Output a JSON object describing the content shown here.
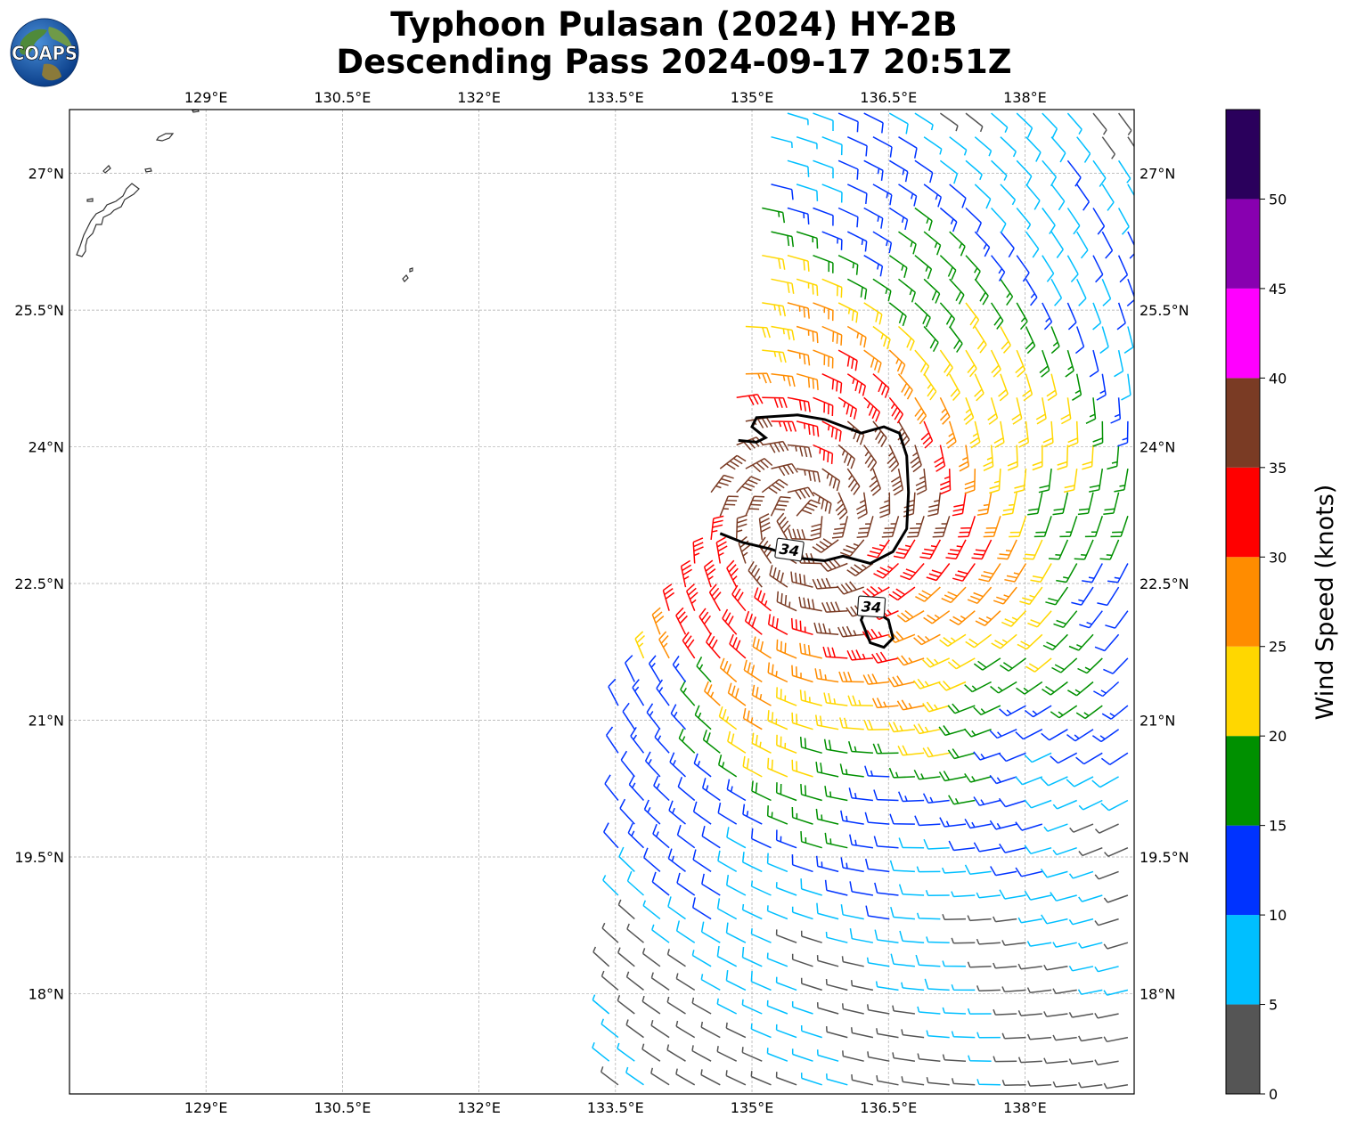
{
  "title": {
    "line1": "Typhoon Pulasan (2024) HY-2B",
    "line2": "Descending Pass 2024-09-17 20:51Z"
  },
  "logo": {
    "text": "COAPS",
    "icon": "globe-logo-icon"
  },
  "map": {
    "lon_range": [
      127.5,
      139.2
    ],
    "lat_range": [
      16.9,
      27.7
    ],
    "lon_ticks": [
      {
        "value": 129.0,
        "label": "129°E"
      },
      {
        "value": 130.5,
        "label": "130.5°E"
      },
      {
        "value": 132.0,
        "label": "132°E"
      },
      {
        "value": 133.5,
        "label": "133.5°E"
      },
      {
        "value": 135.0,
        "label": "135°E"
      },
      {
        "value": 136.5,
        "label": "136.5°E"
      },
      {
        "value": 138.0,
        "label": "138°E"
      }
    ],
    "lat_ticks": [
      {
        "value": 27.0,
        "label": "27°N"
      },
      {
        "value": 25.5,
        "label": "25.5°N"
      },
      {
        "value": 24.0,
        "label": "24°N"
      },
      {
        "value": 22.5,
        "label": "22.5°N"
      },
      {
        "value": 21.0,
        "label": "21°N"
      },
      {
        "value": 19.5,
        "label": "19.5°N"
      },
      {
        "value": 18.0,
        "label": "18°N"
      }
    ],
    "gridlines": true,
    "storm_center": {
      "lon": 135.6,
      "lat": 23.2
    },
    "contour_label": "34",
    "contour_34kt": [
      [
        134.65,
        23.05
      ],
      [
        134.9,
        22.95
      ],
      [
        135.2,
        22.88
      ],
      [
        135.5,
        22.78
      ],
      [
        135.8,
        22.75
      ],
      [
        136.0,
        22.8
      ],
      [
        136.3,
        22.72
      ],
      [
        136.55,
        22.85
      ],
      [
        136.7,
        23.1
      ],
      [
        136.72,
        23.5
      ],
      [
        136.7,
        23.9
      ],
      [
        136.62,
        24.15
      ],
      [
        136.45,
        24.22
      ],
      [
        136.2,
        24.15
      ],
      [
        135.8,
        24.3
      ],
      [
        135.5,
        24.35
      ],
      [
        135.05,
        24.32
      ],
      [
        135.0,
        24.22
      ],
      [
        135.15,
        24.1
      ],
      [
        135.05,
        24.05
      ],
      [
        134.85,
        24.07
      ]
    ],
    "contour_34kt_small": [
      [
        136.2,
        22.1
      ],
      [
        136.3,
        21.85
      ],
      [
        136.45,
        21.8
      ],
      [
        136.55,
        21.9
      ],
      [
        136.5,
        22.1
      ],
      [
        136.35,
        22.2
      ],
      [
        136.22,
        22.15
      ]
    ]
  },
  "colorbar": {
    "label": "Wind Speed (knots)",
    "bounds": [
      0,
      5,
      10,
      15,
      20,
      25,
      30,
      35,
      40,
      45,
      50,
      55
    ],
    "tick_labels": [
      "0",
      "5",
      "10",
      "15",
      "20",
      "25",
      "30",
      "35",
      "40",
      "45",
      "50"
    ],
    "colors": [
      "#555555",
      "#00bfff",
      "#0033ff",
      "#009000",
      "#ffd700",
      "#ff8c00",
      "#ff0000",
      "#7a3b24",
      "#ff00ff",
      "#8800b0",
      "#2a005c"
    ]
  },
  "swath": {
    "polygon": [
      [
        135.25,
        27.7
      ],
      [
        139.2,
        27.7
      ],
      [
        139.2,
        16.9
      ],
      [
        133.4,
        16.9
      ],
      [
        133.3,
        17.3
      ],
      [
        133.5,
        19.3
      ],
      [
        133.45,
        20.6
      ],
      [
        133.6,
        21.8
      ],
      [
        134.3,
        22.5
      ],
      [
        134.55,
        23.5
      ],
      [
        134.9,
        25.3
      ],
      [
        135.25,
        27.7
      ]
    ],
    "lon_step": 0.28,
    "lat_step": 0.26
  }
}
